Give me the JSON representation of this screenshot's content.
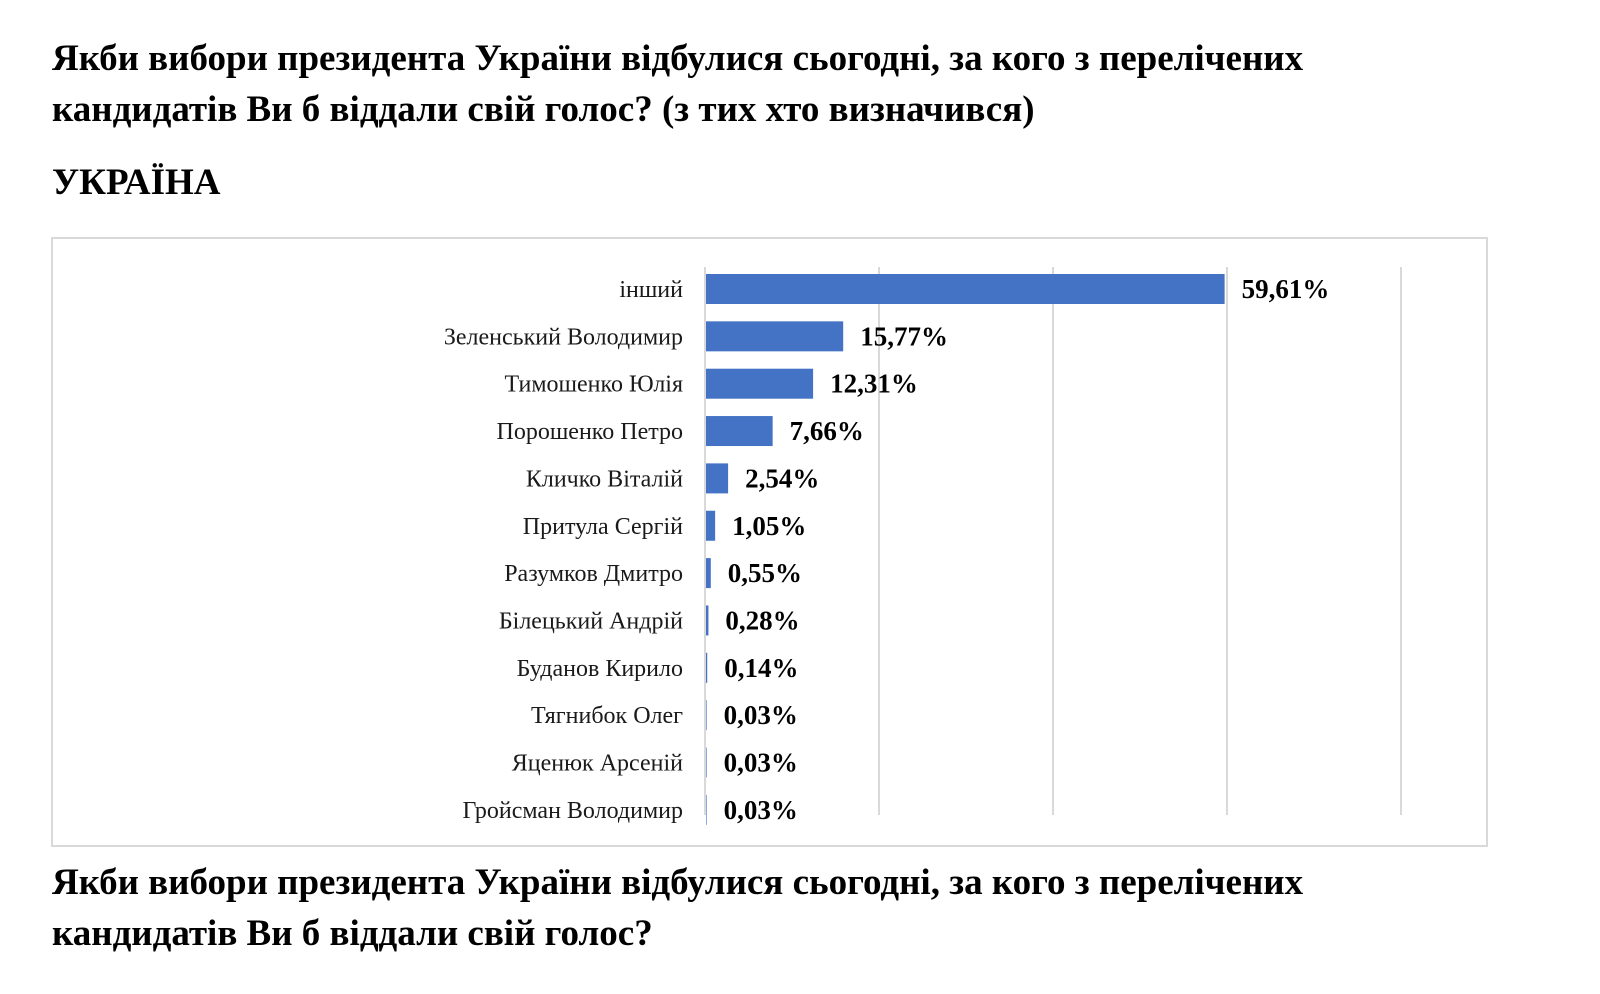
{
  "heading_top": {
    "line1": "Якби вибори президента України відбулися сьогодні, за кого з перелічених",
    "line2": "кандидатів Ви б віддали свій голос? (з тих хто визначився)"
  },
  "heading_region": "УКРАЇНА",
  "heading_bottom": {
    "line1": "Якби вибори президента України відбулися сьогодні, за кого з перелічених",
    "line2": "кандидатів Ви б віддали свій голос?"
  },
  "chart_data": {
    "type": "bar",
    "orientation": "horizontal",
    "categories": [
      "інший",
      "Зеленський Володимир",
      "Тимошенко Юлія",
      "Порошенко Петро",
      "Кличко Віталій",
      "Притула Сергій",
      "Разумков Дмитро",
      "Білецький Андрій",
      "Буданов Кирило",
      "Тягнибок Олег",
      "Яценюк Арсеній",
      "Гройсман Володимир"
    ],
    "values": [
      59.61,
      15.77,
      12.31,
      7.66,
      2.54,
      1.05,
      0.55,
      0.28,
      0.14,
      0.03,
      0.03,
      0.03
    ],
    "value_labels": [
      "59,61%",
      "15,77%",
      "12,31%",
      "7,66%",
      "2,54%",
      "1,05%",
      "0,55%",
      "0,28%",
      "0,14%",
      "0,03%",
      "0,03%",
      "0,03%"
    ],
    "xlim": [
      0,
      80
    ],
    "gridlines": [
      20,
      40,
      60,
      80
    ],
    "grid": true,
    "legend": "none",
    "bar_color": "#4472c4",
    "grid_color": "#d9d9d9"
  }
}
